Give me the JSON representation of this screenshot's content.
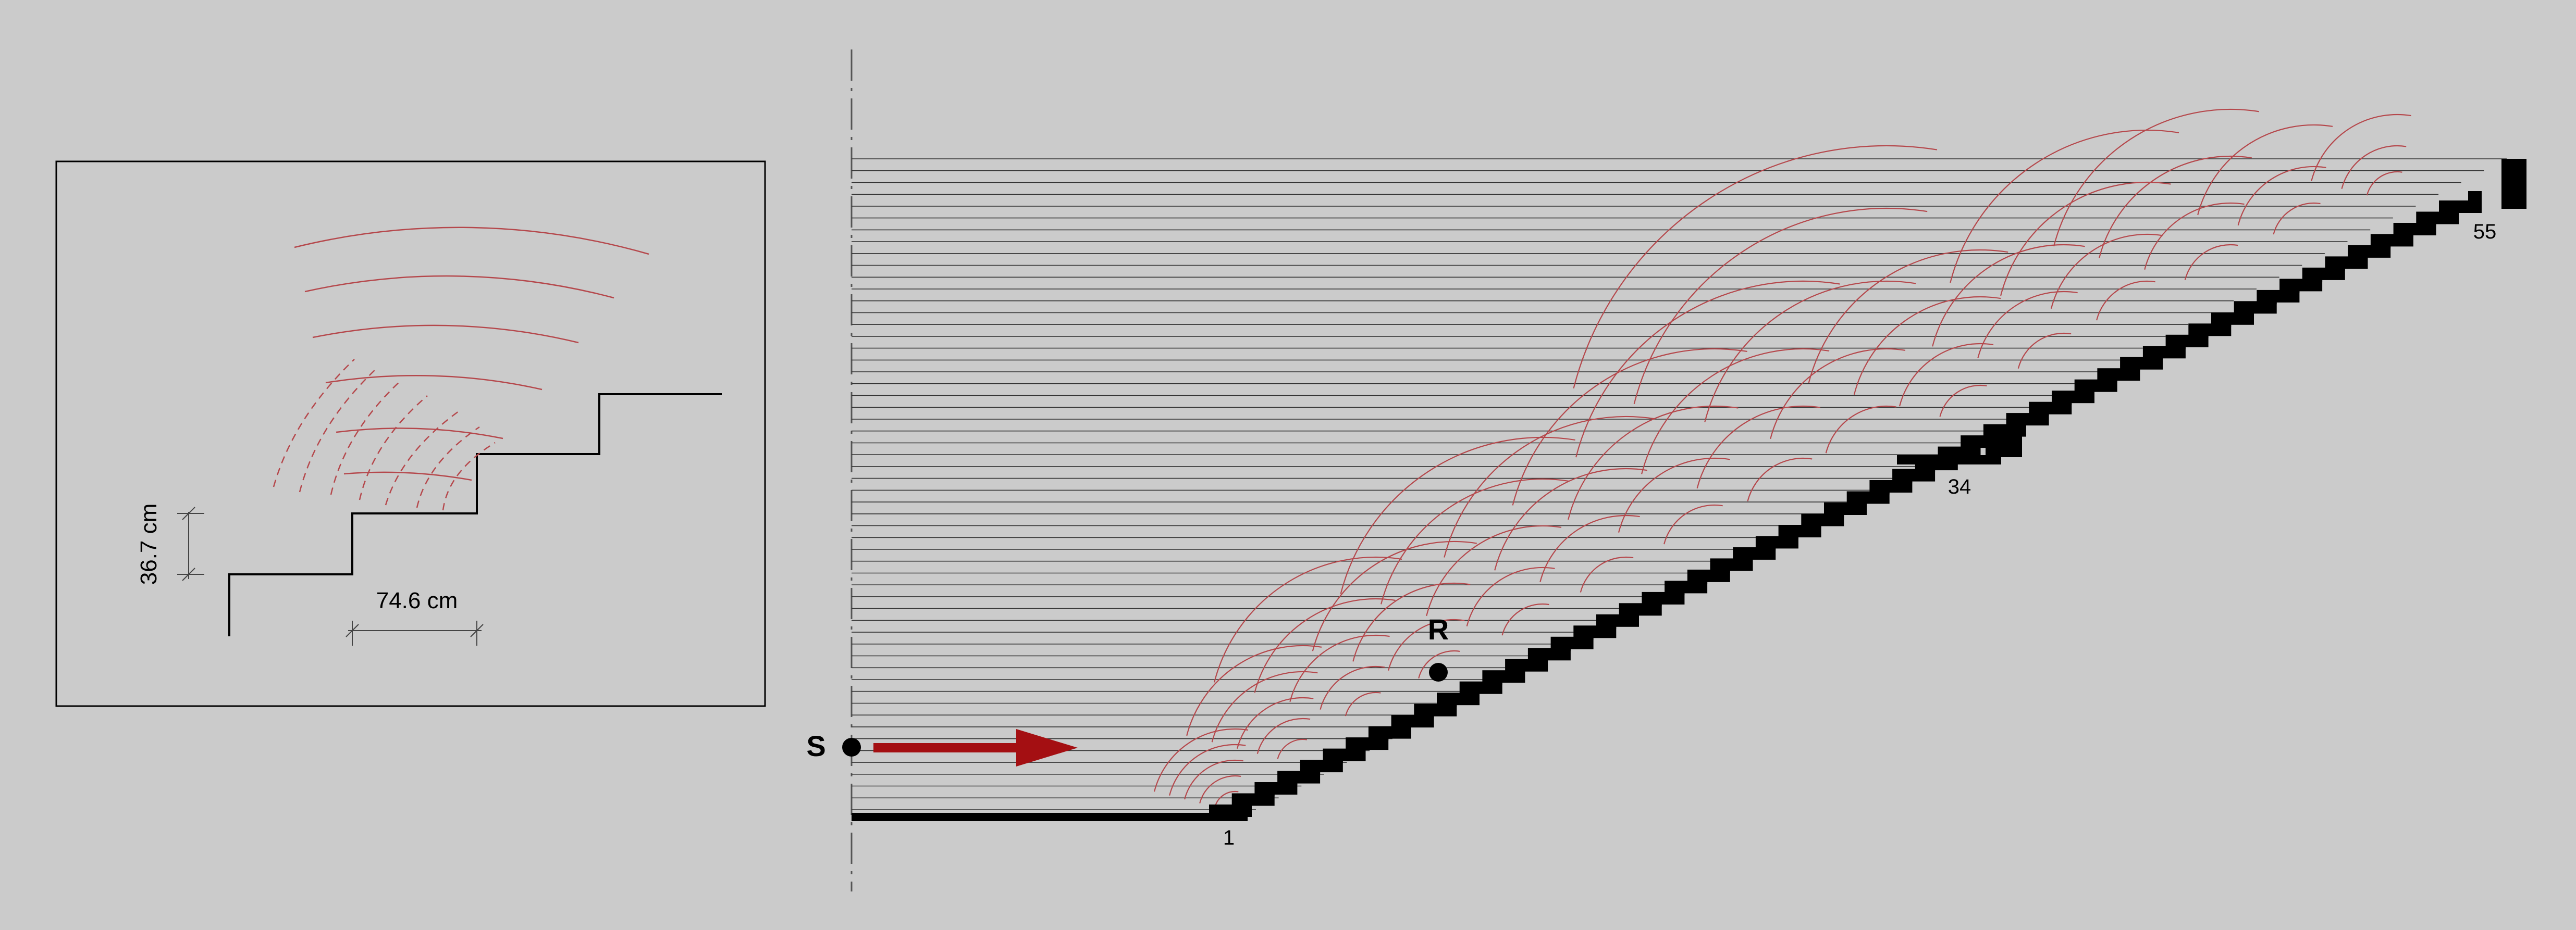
{
  "detail": {
    "riser_label": "36.7 cm",
    "tread_label": "74.6 cm"
  },
  "section": {
    "source_label": "S",
    "receiver_label": "R",
    "step_labels": [
      "1",
      "34",
      "55"
    ]
  },
  "colors": {
    "background": "#cbcbcb",
    "line": "#000000",
    "wave": "#b5484c",
    "arrow": "#a40f12",
    "grid": "#333333"
  }
}
